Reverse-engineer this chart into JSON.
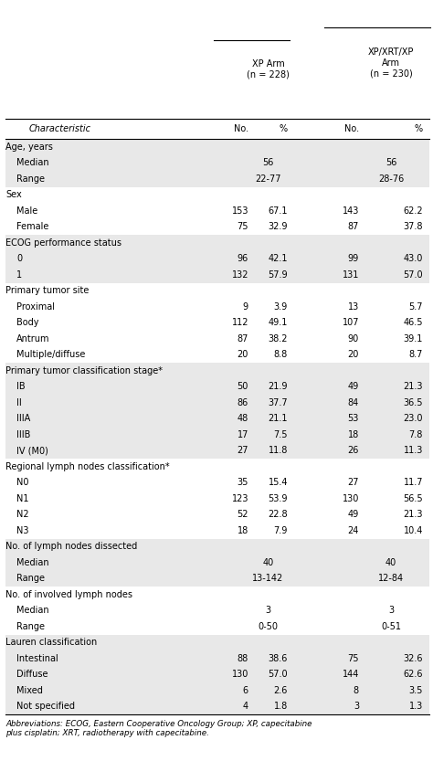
{
  "rows": [
    {
      "label": "Age, years",
      "indent": 0,
      "type": "header",
      "shaded": true,
      "values": [
        "",
        "",
        "",
        ""
      ]
    },
    {
      "label": "Median",
      "indent": 1,
      "type": "span",
      "shaded": true,
      "values": [
        "56",
        "",
        "56",
        ""
      ]
    },
    {
      "label": "Range",
      "indent": 1,
      "type": "span",
      "shaded": true,
      "values": [
        "22-77",
        "",
        "28-76",
        ""
      ]
    },
    {
      "label": "Sex",
      "indent": 0,
      "type": "header",
      "shaded": false,
      "values": [
        "",
        "",
        "",
        ""
      ]
    },
    {
      "label": "Male",
      "indent": 1,
      "type": "data",
      "shaded": false,
      "values": [
        "153",
        "67.1",
        "143",
        "62.2"
      ]
    },
    {
      "label": "Female",
      "indent": 1,
      "type": "data",
      "shaded": false,
      "values": [
        "75",
        "32.9",
        "87",
        "37.8"
      ]
    },
    {
      "label": "ECOG performance status",
      "indent": 0,
      "type": "header",
      "shaded": true,
      "values": [
        "",
        "",
        "",
        ""
      ]
    },
    {
      "label": "0",
      "indent": 1,
      "type": "data",
      "shaded": true,
      "values": [
        "96",
        "42.1",
        "99",
        "43.0"
      ]
    },
    {
      "label": "1",
      "indent": 1,
      "type": "data",
      "shaded": true,
      "values": [
        "132",
        "57.9",
        "131",
        "57.0"
      ]
    },
    {
      "label": "Primary tumor site",
      "indent": 0,
      "type": "header",
      "shaded": false,
      "values": [
        "",
        "",
        "",
        ""
      ]
    },
    {
      "label": "Proximal",
      "indent": 1,
      "type": "data",
      "shaded": false,
      "values": [
        "9",
        "3.9",
        "13",
        "5.7"
      ]
    },
    {
      "label": "Body",
      "indent": 1,
      "type": "data",
      "shaded": false,
      "values": [
        "112",
        "49.1",
        "107",
        "46.5"
      ]
    },
    {
      "label": "Antrum",
      "indent": 1,
      "type": "data",
      "shaded": false,
      "values": [
        "87",
        "38.2",
        "90",
        "39.1"
      ]
    },
    {
      "label": "Multiple/diffuse",
      "indent": 1,
      "type": "data",
      "shaded": false,
      "values": [
        "20",
        "8.8",
        "20",
        "8.7"
      ]
    },
    {
      "label": "Primary tumor classification stage*",
      "indent": 0,
      "type": "header",
      "shaded": true,
      "values": [
        "",
        "",
        "",
        ""
      ]
    },
    {
      "label": "IB",
      "indent": 1,
      "type": "data",
      "shaded": true,
      "values": [
        "50",
        "21.9",
        "49",
        "21.3"
      ]
    },
    {
      "label": "II",
      "indent": 1,
      "type": "data",
      "shaded": true,
      "values": [
        "86",
        "37.7",
        "84",
        "36.5"
      ]
    },
    {
      "label": "IIIA",
      "indent": 1,
      "type": "data",
      "shaded": true,
      "values": [
        "48",
        "21.1",
        "53",
        "23.0"
      ]
    },
    {
      "label": "IIIB",
      "indent": 1,
      "type": "data",
      "shaded": true,
      "values": [
        "17",
        "7.5",
        "18",
        "7.8"
      ]
    },
    {
      "label": "IV (M0)",
      "indent": 1,
      "type": "data",
      "shaded": true,
      "values": [
        "27",
        "11.8",
        "26",
        "11.3"
      ]
    },
    {
      "label": "Regional lymph nodes classification*",
      "indent": 0,
      "type": "header",
      "shaded": false,
      "values": [
        "",
        "",
        "",
        ""
      ]
    },
    {
      "label": "N0",
      "indent": 1,
      "type": "data",
      "shaded": false,
      "values": [
        "35",
        "15.4",
        "27",
        "11.7"
      ]
    },
    {
      "label": "N1",
      "indent": 1,
      "type": "data",
      "shaded": false,
      "values": [
        "123",
        "53.9",
        "130",
        "56.5"
      ]
    },
    {
      "label": "N2",
      "indent": 1,
      "type": "data",
      "shaded": false,
      "values": [
        "52",
        "22.8",
        "49",
        "21.3"
      ]
    },
    {
      "label": "N3",
      "indent": 1,
      "type": "data",
      "shaded": false,
      "values": [
        "18",
        "7.9",
        "24",
        "10.4"
      ]
    },
    {
      "label": "No. of lymph nodes dissected",
      "indent": 0,
      "type": "header",
      "shaded": true,
      "values": [
        "",
        "",
        "",
        ""
      ]
    },
    {
      "label": "Median",
      "indent": 1,
      "type": "span",
      "shaded": true,
      "values": [
        "40",
        "",
        "40",
        ""
      ]
    },
    {
      "label": "Range",
      "indent": 1,
      "type": "span",
      "shaded": true,
      "values": [
        "13-142",
        "",
        "12-84",
        ""
      ]
    },
    {
      "label": "No. of involved lymph nodes",
      "indent": 0,
      "type": "header",
      "shaded": false,
      "values": [
        "",
        "",
        "",
        ""
      ]
    },
    {
      "label": "Median",
      "indent": 1,
      "type": "span",
      "shaded": false,
      "values": [
        "3",
        "",
        "3",
        ""
      ]
    },
    {
      "label": "Range",
      "indent": 1,
      "type": "span",
      "shaded": false,
      "values": [
        "0-50",
        "",
        "0-51",
        ""
      ]
    },
    {
      "label": "Lauren classification",
      "indent": 0,
      "type": "header",
      "shaded": true,
      "values": [
        "",
        "",
        "",
        ""
      ]
    },
    {
      "label": "Intestinal",
      "indent": 1,
      "type": "data",
      "shaded": true,
      "values": [
        "88",
        "38.6",
        "75",
        "32.6"
      ]
    },
    {
      "label": "Diffuse",
      "indent": 1,
      "type": "data",
      "shaded": true,
      "values": [
        "130",
        "57.0",
        "144",
        "62.6"
      ]
    },
    {
      "label": "Mixed",
      "indent": 1,
      "type": "data",
      "shaded": true,
      "values": [
        "6",
        "2.6",
        "8",
        "3.5"
      ]
    },
    {
      "label": "Not specified",
      "indent": 1,
      "type": "data",
      "shaded": true,
      "values": [
        "4",
        "1.8",
        "3",
        "1.3"
      ]
    }
  ],
  "footnote": "Abbreviations: ECOG, Eastern Cooperative Oncology Group; XP, capecitabine\nplus cisplatin; XRT, radiotherapy with capecitabine.",
  "shaded_color": "#e8e8e8",
  "font_size": 7.0,
  "col_header1_xp": "XP Arm\n(n = 228)",
  "col_header1_xpxrt": "XP/XRT/XP\nArm\n(n = 230)",
  "col_subheader_char": "Characteristic",
  "col_subheader_no": "No.",
  "col_subheader_pct": "%",
  "line_color": "#aaaaaa",
  "top_line_color": "#888888"
}
